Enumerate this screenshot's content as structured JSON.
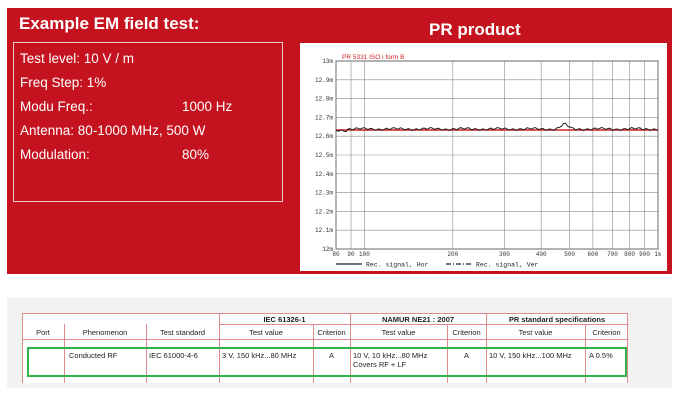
{
  "slide": {
    "title": "Example EM field test:",
    "product_title": "PR product",
    "params": [
      {
        "label": "Test level: 10 V / m",
        "value": ""
      },
      {
        "label": "Freq Step: 1%",
        "value": ""
      },
      {
        "label": "Modu Freq.:",
        "value": "1000 Hz"
      },
      {
        "label": "Antenna: 80-1000 MHz, 500 W",
        "value": ""
      },
      {
        "label": "Modulation:",
        "value": "80%"
      }
    ]
  },
  "plot": {
    "header": "PR 5331 ISO i form B",
    "y_ticks": [
      "13m",
      "12.9m",
      "12.8m",
      "12.7m",
      "12.6m",
      "12.5m",
      "12.4m",
      "12.3m",
      "12.2m",
      "12.1m",
      "12m"
    ],
    "x_ticks": [
      "80",
      "90",
      "100",
      "200",
      "300",
      "400",
      "500",
      "600",
      "700",
      "800",
      "900",
      "1k"
    ],
    "legend": [
      "Rec. signal, Hor",
      "Rec. signal, Ver"
    ],
    "colors": {
      "reference_line": "#d22020",
      "signal": "#222222"
    }
  },
  "table": {
    "group_headers": [
      "IEC 61326-1",
      "NAMUR NE21 : 2007",
      "PR standard specifications"
    ],
    "columns": [
      "Port",
      "Phenomenon",
      "Test standard",
      "Test value",
      "Criterion",
      "Test value",
      "Criterion",
      "Test value",
      "Criterion"
    ],
    "row": {
      "port": "",
      "phenomenon": "Conducted RF",
      "standard": "IEC 61000-4-6",
      "iec_value": "3 V, 150 kHz...80 MHz",
      "iec_criterion": "A",
      "namur_value": "10 V, 10 kHz...80 MHz",
      "namur_value_2": "Covers RF + LF",
      "namur_criterion": "A",
      "pr_value": "10 V, 150 kHz...100 MHz",
      "pr_criterion": "A 0.5%"
    },
    "highlight_color": "#2eb34a"
  }
}
